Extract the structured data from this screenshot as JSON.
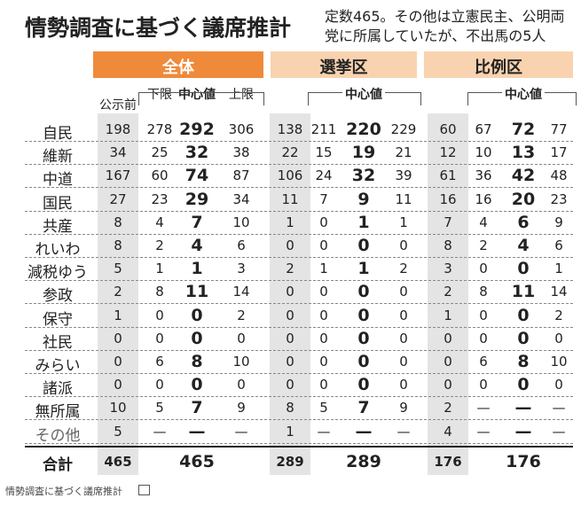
{
  "header": {
    "title": "情勢調査に基づく議席推計",
    "note": [
      "定数465。その他は立憲民主、公明両",
      "党に所属していたが、不出馬の5人"
    ]
  },
  "table": {
    "groups": [
      {
        "name": "全体",
        "subheaders": [
          "公示前",
          "下限",
          "中心値",
          "上限"
        ]
      },
      {
        "name": "選挙区",
        "subheaders": [
          "中心値"
        ]
      },
      {
        "name": "比例区",
        "subheaders": [
          "中心値"
        ]
      }
    ],
    "rows": [
      [
        "自民",
        "198",
        "278",
        "292",
        "306",
        "138",
        "211",
        "220",
        "229",
        "60",
        "67",
        "72",
        "77"
      ],
      [
        "維新",
        "34",
        "25",
        "32",
        "38",
        "22",
        "15",
        "19",
        "21",
        "12",
        "10",
        "13",
        "17"
      ],
      [
        "中道",
        "167",
        "60",
        "74",
        "87",
        "106",
        "24",
        "32",
        "39",
        "61",
        "36",
        "42",
        "48"
      ],
      [
        "国民",
        "27",
        "23",
        "29",
        "34",
        "11",
        "7",
        "9",
        "11",
        "16",
        "16",
        "20",
        "23"
      ],
      [
        "共産",
        "8",
        "4",
        "7",
        "10",
        "1",
        "0",
        "1",
        "1",
        "7",
        "4",
        "6",
        "9"
      ],
      [
        "れいわ",
        "8",
        "2",
        "4",
        "6",
        "0",
        "0",
        "0",
        "0",
        "8",
        "2",
        "4",
        "6"
      ],
      [
        "減税ゆう",
        "5",
        "1",
        "1",
        "3",
        "2",
        "1",
        "1",
        "2",
        "3",
        "0",
        "0",
        "1"
      ],
      [
        "参政",
        "2",
        "8",
        "11",
        "14",
        "0",
        "0",
        "0",
        "0",
        "2",
        "8",
        "11",
        "14"
      ],
      [
        "保守",
        "1",
        "0",
        "0",
        "2",
        "0",
        "0",
        "0",
        "0",
        "1",
        "0",
        "0",
        "2"
      ],
      [
        "社民",
        "0",
        "0",
        "0",
        "0",
        "0",
        "0",
        "0",
        "0",
        "0",
        "0",
        "0",
        "0"
      ],
      [
        "みらい",
        "0",
        "6",
        "8",
        "10",
        "0",
        "0",
        "0",
        "0",
        "0",
        "6",
        "8",
        "10"
      ],
      [
        "諸派",
        "0",
        "0",
        "0",
        "0",
        "0",
        "0",
        "0",
        "0",
        "0",
        "0",
        "0",
        "0"
      ],
      [
        "無所属",
        "10",
        "5",
        "7",
        "9",
        "8",
        "5",
        "7",
        "9",
        "2",
        "—",
        "—",
        "—"
      ],
      [
        "その他",
        "5",
        "—",
        "—",
        "—",
        "1",
        "—",
        "—",
        "—",
        "4",
        "—",
        "—",
        "—"
      ]
    ],
    "total": [
      "合計",
      "465",
      "465",
      "289",
      "289",
      "176",
      "176"
    ]
  },
  "caption": "情勢調査に基づく議席推計"
}
